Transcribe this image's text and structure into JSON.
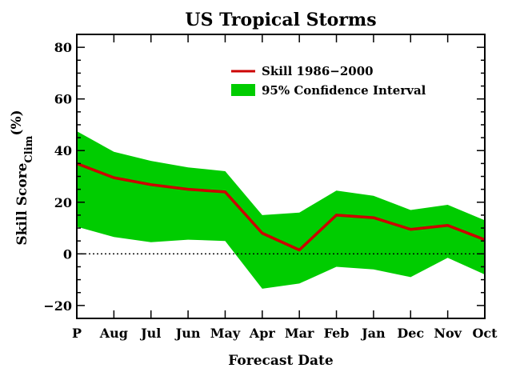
{
  "chart_data": {
    "type": "line",
    "title": "US Tropical Storms",
    "xlabel": "Forecast Date",
    "ylabel": {
      "main": "Skill Score",
      "subscript": "Clim",
      "unit": "(%)"
    },
    "categories": [
      "P",
      "Aug",
      "Jul",
      "Jun",
      "May",
      "Apr",
      "Mar",
      "Feb",
      "Jan",
      "Dec",
      "Nov",
      "Oct"
    ],
    "ylim": [
      -25,
      85
    ],
    "yticks": [
      80,
      60,
      40,
      20,
      0,
      -20
    ],
    "ytick_labels": [
      "80",
      "60",
      "40",
      "20",
      "0",
      "−20"
    ],
    "series": [
      {
        "name": "Skill 1986−2000",
        "kind": "line",
        "color": "#cc0000",
        "values": [
          35,
          29.5,
          26.8,
          25,
          24,
          8,
          1.5,
          15,
          14,
          9.5,
          11,
          5.5
        ]
      },
      {
        "name": "95% Confidence Interval",
        "kind": "band",
        "color": "#00cc00",
        "upper": [
          47.5,
          39.5,
          36,
          33.5,
          32,
          15,
          16,
          24.5,
          22.5,
          17,
          19,
          13
        ],
        "lower": [
          10.5,
          6.5,
          4.5,
          5.5,
          5,
          -13.5,
          -11.5,
          -5,
          -6,
          -9,
          -1.5,
          -8
        ]
      }
    ],
    "reference_line": {
      "y": 0,
      "style": "dotted"
    },
    "legend_position": "top-right",
    "grid": false
  }
}
